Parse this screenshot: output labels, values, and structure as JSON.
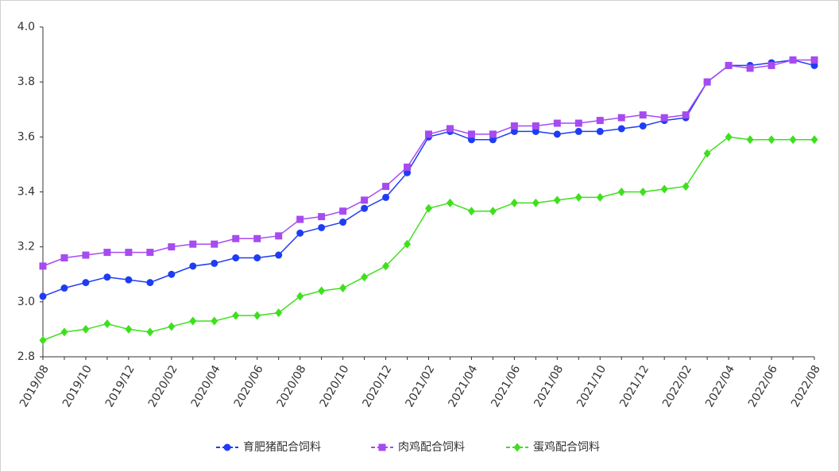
{
  "chart_data": {
    "type": "line",
    "categories": [
      "2019/08",
      null,
      "2019/10",
      null,
      "2019/12",
      null,
      "2020/02",
      null,
      "2020/04",
      null,
      "2020/06",
      null,
      "2020/08",
      null,
      "2020/10",
      null,
      "2020/12",
      null,
      "2021/02",
      null,
      "2021/04",
      null,
      "2021/06",
      null,
      "2021/08",
      null,
      "2021/10",
      null,
      "2021/12",
      null,
      "2022/02",
      null,
      "2022/04",
      null,
      "2022/06",
      null,
      "2022/08"
    ],
    "series": [
      {
        "name": "育肥猪配合饲料",
        "color": "#1f3cf5",
        "marker": "circle",
        "values": [
          3.02,
          3.05,
          3.07,
          3.09,
          3.08,
          3.07,
          3.1,
          3.13,
          3.14,
          3.16,
          3.16,
          3.17,
          3.25,
          3.27,
          3.29,
          3.34,
          3.38,
          3.47,
          3.6,
          3.62,
          3.59,
          3.59,
          3.62,
          3.62,
          3.61,
          3.62,
          3.62,
          3.63,
          3.64,
          3.66,
          3.67,
          3.8,
          3.86,
          3.86,
          3.87,
          3.88,
          3.86
        ]
      },
      {
        "name": "肉鸡配合饲料",
        "color": "#a64bf0",
        "marker": "square",
        "values": [
          3.13,
          3.16,
          3.17,
          3.18,
          3.18,
          3.18,
          3.2,
          3.21,
          3.21,
          3.23,
          3.23,
          3.24,
          3.3,
          3.31,
          3.33,
          3.37,
          3.42,
          3.49,
          3.61,
          3.63,
          3.61,
          3.61,
          3.64,
          3.64,
          3.65,
          3.65,
          3.66,
          3.67,
          3.68,
          3.67,
          3.68,
          3.8,
          3.86,
          3.85,
          3.86,
          3.88,
          3.88
        ]
      },
      {
        "name": "蛋鸡配合饲料",
        "color": "#3ee01c",
        "marker": "diamond",
        "values": [
          2.86,
          2.89,
          2.9,
          2.92,
          2.9,
          2.89,
          2.91,
          2.93,
          2.93,
          2.95,
          2.95,
          2.96,
          3.02,
          3.04,
          3.05,
          3.09,
          3.13,
          3.21,
          3.34,
          3.36,
          3.33,
          3.33,
          3.36,
          3.36,
          3.37,
          3.38,
          3.38,
          3.4,
          3.4,
          3.41,
          3.42,
          3.54,
          3.6,
          3.59,
          3.59,
          3.59,
          3.59
        ]
      }
    ],
    "ylim": [
      2.8,
      4.0
    ],
    "yticks": [
      2.8,
      {
        "value": 3,
        "label": "3.0"
      },
      3.2,
      3.4,
      3.6,
      3.8,
      {
        "value": 4,
        "label": "4.0"
      }
    ],
    "grid": false,
    "legend": "bottom"
  }
}
